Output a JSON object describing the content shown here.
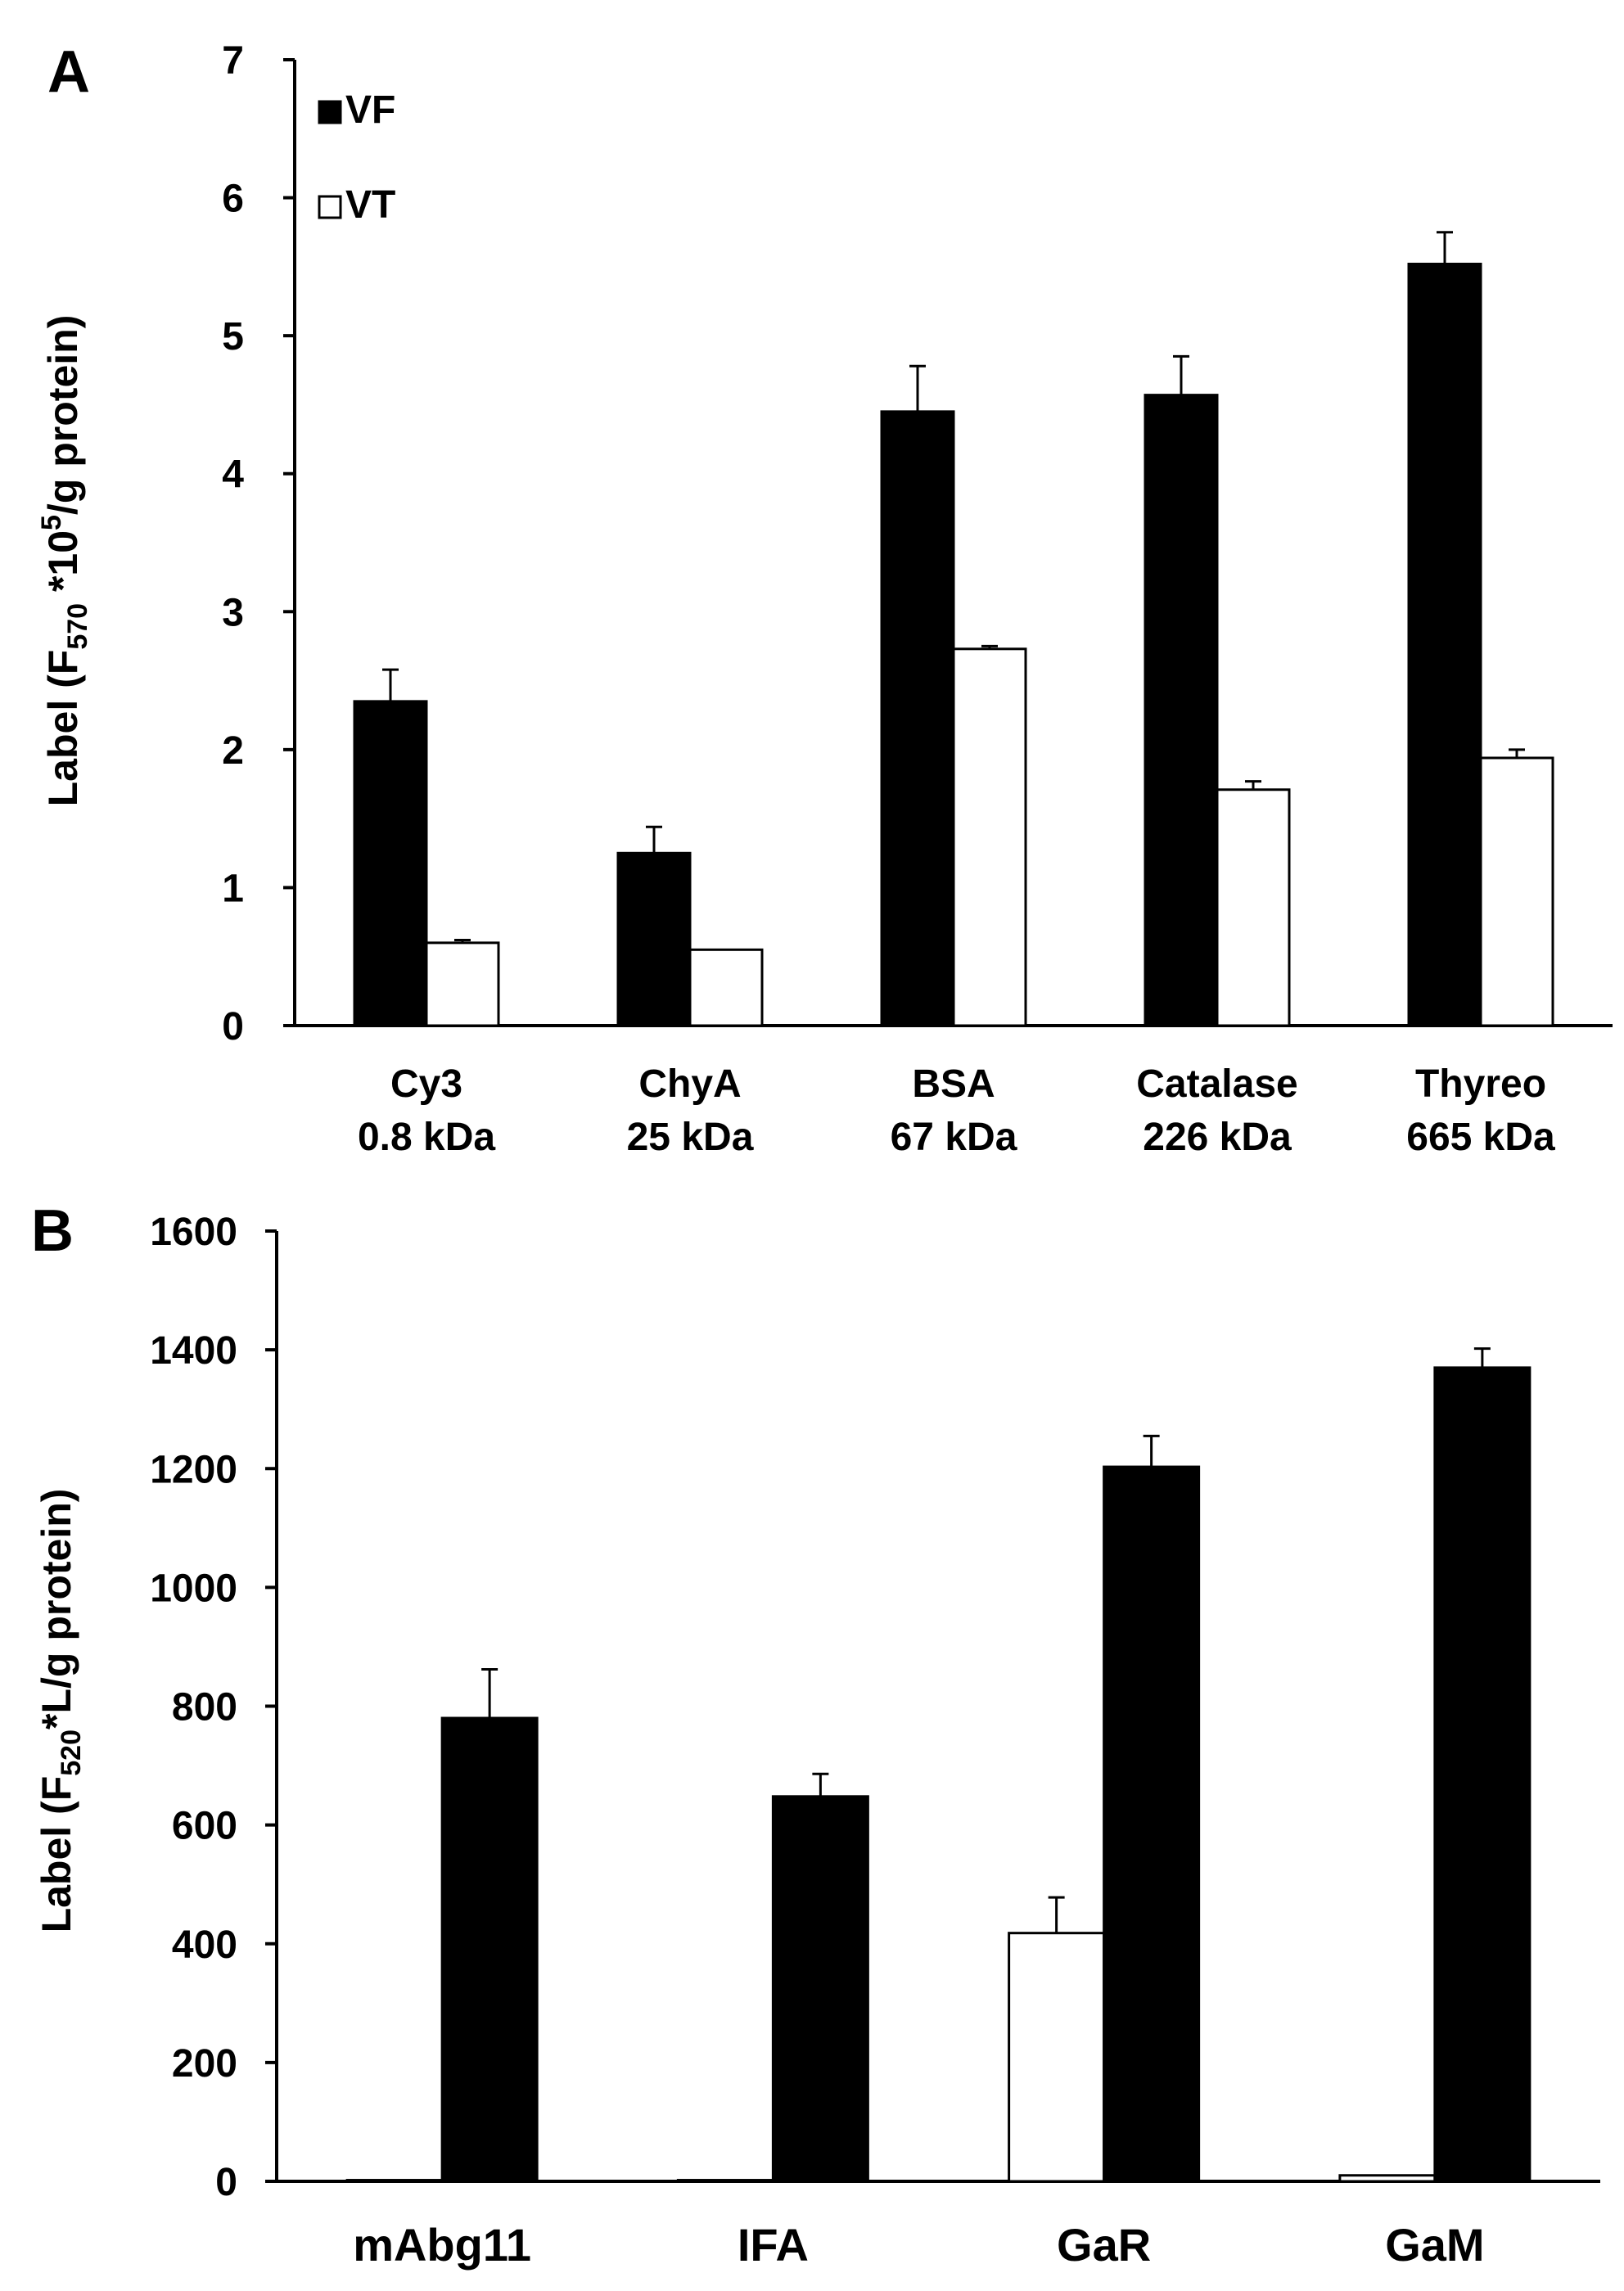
{
  "chart_data": [
    {
      "panel_label": "A",
      "type": "bar",
      "ylabel": {
        "main": "Label (F",
        "sub": "570",
        "mid": " *10",
        "sup": "5",
        "tail": "/g protein)"
      },
      "ylim": [
        0,
        7
      ],
      "yticks": [
        0,
        1,
        2,
        3,
        4,
        5,
        6,
        7
      ],
      "categories": [
        {
          "line1": "Cy3",
          "line2": "0.8 kDa"
        },
        {
          "line1": "ChyA",
          "line2": "25 kDa"
        },
        {
          "line1": "BSA",
          "line2": "67 kDa"
        },
        {
          "line1": "Catalase",
          "line2": "226 kDa"
        },
        {
          "line1": "Thyreo",
          "line2": "665 kDa"
        }
      ],
      "series_order": [
        "VF",
        "VT"
      ],
      "series": [
        {
          "name": "VF",
          "values": [
            2.35,
            1.25,
            4.45,
            4.57,
            5.52
          ],
          "errors": [
            0.23,
            0.19,
            0.33,
            0.28,
            0.23
          ]
        },
        {
          "name": "VT",
          "values": [
            0.6,
            0.55,
            2.73,
            1.71,
            1.94
          ],
          "errors": [
            0.02,
            0.0,
            0.02,
            0.06,
            0.06
          ]
        }
      ],
      "legend": {
        "placement": "top-left",
        "items": [
          "VF",
          "VT"
        ]
      },
      "grid": false
    },
    {
      "panel_label": "B",
      "type": "bar",
      "ylabel": {
        "main": "Label (F",
        "sub": "520",
        "mid": "*L/g protein)",
        "sup": "",
        "tail": ""
      },
      "ylim": [
        0,
        1600
      ],
      "yticks": [
        0,
        200,
        400,
        600,
        800,
        1000,
        1200,
        1400,
        1600
      ],
      "categories": [
        {
          "line1": "mAbg11",
          "line2": ""
        },
        {
          "line1": "IFA",
          "line2": ""
        },
        {
          "line1": "GaR",
          "line2": ""
        },
        {
          "line1": "GaM",
          "line2": ""
        }
      ],
      "series_order": [
        "VT",
        "VF"
      ],
      "series": [
        {
          "name": "VF",
          "values": [
            780,
            648,
            1203,
            1370
          ],
          "errors": [
            82,
            38,
            52,
            32
          ]
        },
        {
          "name": "VT",
          "values": [
            2,
            2,
            418,
            10
          ],
          "errors": [
            0,
            0,
            60,
            0
          ]
        }
      ],
      "grid": false
    }
  ],
  "colors": {
    "VF": "#000000",
    "VT": "#ffffff",
    "stroke": "#000000"
  }
}
